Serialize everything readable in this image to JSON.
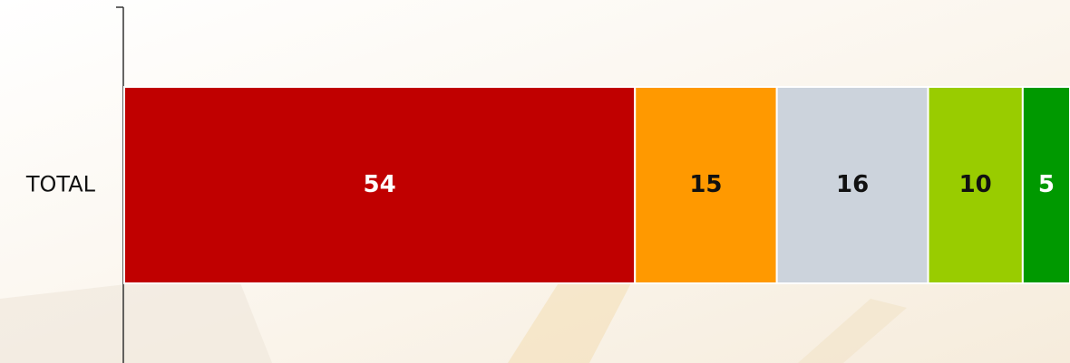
{
  "chart_data": {
    "type": "stacked-bar",
    "orientation": "horizontal",
    "categories": [
      "TOTAL"
    ],
    "series": [
      {
        "color": "#c00000",
        "values": [
          54
        ]
      },
      {
        "color": "#ff9900",
        "values": [
          15
        ]
      },
      {
        "color": "#ccd3dc",
        "values": [
          16
        ]
      },
      {
        "color": "#99cc00",
        "values": [
          10
        ]
      },
      {
        "color": "#009900",
        "values": [
          5
        ]
      }
    ],
    "xlim": [
      0,
      100
    ]
  }
}
